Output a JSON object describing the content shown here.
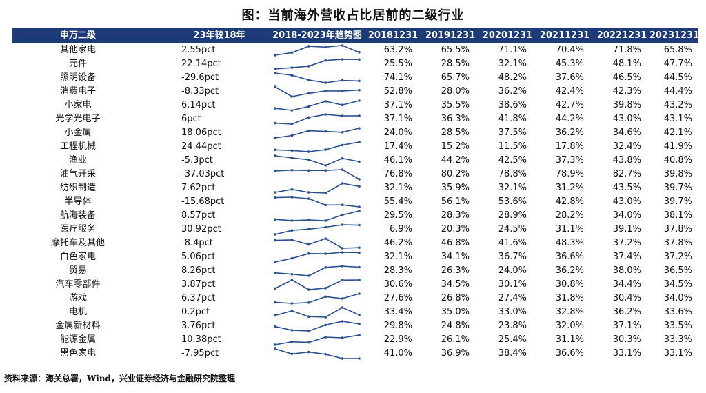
{
  "title": "图：当前海外营收占比居前的二级行业",
  "header": {
    "name": "申万二级",
    "change": "23年较18年",
    "trend": "2018-2023年趋势图",
    "years": [
      "20181231",
      "20191231",
      "20201231",
      "20211231",
      "20221231",
      "20231231"
    ]
  },
  "source": "资料来源：海关总署，Wind，兴业证券经济与金融研究院整理",
  "colors": {
    "header_bg": "#1f3a78",
    "line": "#2a4f8f"
  },
  "chart_data": {
    "type": "table",
    "columns": [
      "申万二级",
      "23年较18年",
      "2018-2023年趋势图",
      "20181231",
      "20191231",
      "20201231",
      "20211231",
      "20221231",
      "20231231"
    ],
    "rows": [
      {
        "name": "其他家电",
        "change": "2.55pct",
        "values": [
          "63.2%",
          "65.5%",
          "71.1%",
          "70.4%",
          "71.8%",
          "65.8%"
        ],
        "nums": [
          63.2,
          65.5,
          71.1,
          70.4,
          71.8,
          65.8
        ]
      },
      {
        "name": "元件",
        "change": "22.14pct",
        "values": [
          "25.5%",
          "28.5%",
          "32.1%",
          "45.3%",
          "48.1%",
          "47.7%"
        ],
        "nums": [
          25.5,
          28.5,
          32.1,
          45.3,
          48.1,
          47.7
        ]
      },
      {
        "name": "照明设备",
        "change": "-29.6pct",
        "values": [
          "74.1%",
          "65.7%",
          "48.2%",
          "37.6%",
          "46.5%",
          "44.5%"
        ],
        "nums": [
          74.1,
          65.7,
          48.2,
          37.6,
          46.5,
          44.5
        ]
      },
      {
        "name": "消费电子",
        "change": "-8.33pct",
        "values": [
          "52.8%",
          "28.0%",
          "36.2%",
          "42.4%",
          "42.3%",
          "44.4%"
        ],
        "nums": [
          52.8,
          28.0,
          36.2,
          42.4,
          42.3,
          44.4
        ]
      },
      {
        "name": "小家电",
        "change": "6.14pct",
        "values": [
          "37.1%",
          "35.5%",
          "38.6%",
          "42.7%",
          "39.8%",
          "43.2%"
        ],
        "nums": [
          37.1,
          35.5,
          38.6,
          42.7,
          39.8,
          43.2
        ]
      },
      {
        "name": "光学光电子",
        "change": "6pct",
        "values": [
          "37.1%",
          "36.3%",
          "41.8%",
          "44.2%",
          "43.0%",
          "43.1%"
        ],
        "nums": [
          37.1,
          36.3,
          41.8,
          44.2,
          43.0,
          43.1
        ]
      },
      {
        "name": "小金属",
        "change": "18.06pct",
        "values": [
          "24.0%",
          "28.5%",
          "37.5%",
          "36.2%",
          "34.6%",
          "42.1%"
        ],
        "nums": [
          24.0,
          28.5,
          37.5,
          36.2,
          34.6,
          42.1
        ]
      },
      {
        "name": "工程机械",
        "change": "24.44pct",
        "values": [
          "17.4%",
          "15.2%",
          "11.5%",
          "17.8%",
          "32.4%",
          "41.9%"
        ],
        "nums": [
          17.4,
          15.2,
          11.5,
          17.8,
          32.4,
          41.9
        ]
      },
      {
        "name": "渔业",
        "change": "-5.3pct",
        "values": [
          "46.1%",
          "44.2%",
          "42.5%",
          "37.3%",
          "43.8%",
          "40.8%"
        ],
        "nums": [
          46.1,
          44.2,
          42.5,
          37.3,
          43.8,
          40.8
        ]
      },
      {
        "name": "油气开采",
        "change": "-37.03pct",
        "values": [
          "76.8%",
          "80.2%",
          "78.8%",
          "78.9%",
          "82.7%",
          "39.8%"
        ],
        "nums": [
          76.8,
          80.2,
          78.8,
          78.9,
          82.7,
          39.8
        ]
      },
      {
        "name": "纺织制造",
        "change": "7.62pct",
        "values": [
          "32.1%",
          "35.9%",
          "32.1%",
          "31.2%",
          "43.5%",
          "39.7%"
        ],
        "nums": [
          32.1,
          35.9,
          32.1,
          31.2,
          43.5,
          39.7
        ]
      },
      {
        "name": "半导体",
        "change": "-15.68pct",
        "values": [
          "55.4%",
          "56.1%",
          "53.6%",
          "42.8%",
          "43.0%",
          "39.7%"
        ],
        "nums": [
          55.4,
          56.1,
          53.6,
          42.8,
          43.0,
          39.7
        ]
      },
      {
        "name": "航海装备",
        "change": "8.57pct",
        "values": [
          "29.5%",
          "28.3%",
          "28.9%",
          "28.2%",
          "34.0%",
          "38.1%"
        ],
        "nums": [
          29.5,
          28.3,
          28.9,
          28.2,
          34.0,
          38.1
        ]
      },
      {
        "name": "医疗服务",
        "change": "30.92pct",
        "values": [
          "6.9%",
          "20.3%",
          "24.5%",
          "31.1%",
          "39.1%",
          "37.8%"
        ],
        "nums": [
          6.9,
          20.3,
          24.5,
          31.1,
          39.1,
          37.8
        ]
      },
      {
        "name": "摩托车及其他",
        "change": "-8.4pct",
        "values": [
          "46.2%",
          "46.8%",
          "41.6%",
          "48.3%",
          "37.2%",
          "37.8%"
        ],
        "nums": [
          46.2,
          46.8,
          41.6,
          48.3,
          37.2,
          37.8
        ]
      },
      {
        "name": "白色家电",
        "change": "5.06pct",
        "values": [
          "32.1%",
          "34.1%",
          "36.7%",
          "36.6%",
          "37.4%",
          "37.2%"
        ],
        "nums": [
          32.1,
          34.1,
          36.7,
          36.6,
          37.4,
          37.2
        ]
      },
      {
        "name": "贸易",
        "change": "8.26pct",
        "values": [
          "28.3%",
          "26.3%",
          "24.0%",
          "36.2%",
          "38.0%",
          "36.5%"
        ],
        "nums": [
          28.3,
          26.3,
          24.0,
          36.2,
          38.0,
          36.5
        ]
      },
      {
        "name": "汽车零部件",
        "change": "3.87pct",
        "values": [
          "30.6%",
          "34.5%",
          "30.1%",
          "30.8%",
          "34.4%",
          "34.5%"
        ],
        "nums": [
          30.6,
          34.5,
          30.1,
          30.8,
          34.4,
          34.5
        ]
      },
      {
        "name": "游戏",
        "change": "6.37pct",
        "values": [
          "27.6%",
          "26.8%",
          "27.4%",
          "31.8%",
          "30.4%",
          "34.0%"
        ],
        "nums": [
          27.6,
          26.8,
          27.4,
          31.8,
          30.4,
          34.0
        ]
      },
      {
        "name": "电机",
        "change": "0.2pct",
        "values": [
          "33.4%",
          "35.0%",
          "33.0%",
          "32.8%",
          "36.2%",
          "33.6%"
        ],
        "nums": [
          33.4,
          35.0,
          33.0,
          32.8,
          36.2,
          33.6
        ]
      },
      {
        "name": "金属新材料",
        "change": "3.76pct",
        "values": [
          "29.8%",
          "24.8%",
          "23.8%",
          "32.0%",
          "37.1%",
          "33.5%"
        ],
        "nums": [
          29.8,
          24.8,
          23.8,
          32.0,
          37.1,
          33.5
        ]
      },
      {
        "name": "能源金属",
        "change": "10.38pct",
        "values": [
          "22.9%",
          "26.1%",
          "25.4%",
          "31.1%",
          "30.3%",
          "33.3%"
        ],
        "nums": [
          22.9,
          26.1,
          25.4,
          31.1,
          30.3,
          33.3
        ]
      },
      {
        "name": "黑色家电",
        "change": "-7.95pct",
        "values": [
          "41.0%",
          "36.9%",
          "38.4%",
          "36.6%",
          "33.1%",
          "33.1%"
        ],
        "nums": [
          41.0,
          36.9,
          38.4,
          36.6,
          33.1,
          33.1
        ]
      }
    ]
  }
}
